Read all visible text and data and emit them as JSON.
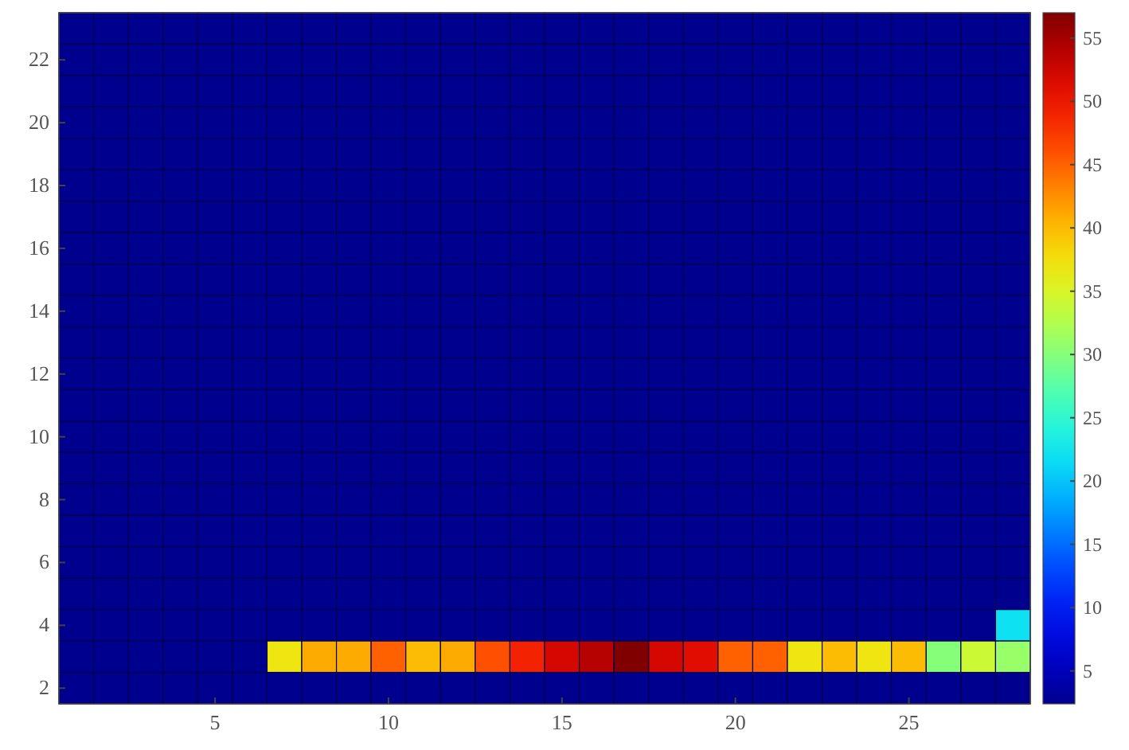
{
  "chart_data": {
    "type": "heatmap",
    "categories": [
      null,
      null,
      null,
      null,
      "5",
      null,
      null,
      null,
      null,
      "10",
      null,
      null,
      null,
      null,
      "15",
      null,
      null,
      null,
      null,
      "20",
      null,
      null,
      null,
      null,
      "25",
      null,
      null,
      null
    ],
    "y_categories": [
      null,
      "22",
      null,
      "20",
      null,
      "18",
      null,
      "16",
      null,
      "14",
      null,
      "12",
      null,
      "10",
      null,
      "8",
      null,
      "6",
      null,
      "4",
      null,
      "2"
    ],
    "cells": [
      [
        2.4,
        2.4,
        2.4,
        2.4,
        2.4,
        2.4,
        2.4,
        2.4,
        2.4,
        2.4,
        2.4,
        2.4,
        2.4,
        2.4,
        2.4,
        2.4,
        2.4,
        2.4,
        2.4,
        2.4,
        2.4,
        2.4,
        2.4,
        2.4,
        2.4,
        2.4,
        2.4,
        2.4
      ],
      [
        2.4,
        2.4,
        2.4,
        2.4,
        2.4,
        2.4,
        2.4,
        2.4,
        2.4,
        2.4,
        2.4,
        2.4,
        2.4,
        2.4,
        2.4,
        2.4,
        2.4,
        2.4,
        2.4,
        2.4,
        2.4,
        2.4,
        2.4,
        2.4,
        2.4,
        2.4,
        2.4,
        2.4
      ],
      [
        2.4,
        2.4,
        2.4,
        2.4,
        2.4,
        2.4,
        2.4,
        2.4,
        2.4,
        2.4,
        2.4,
        2.4,
        2.4,
        2.4,
        2.4,
        2.4,
        2.4,
        2.4,
        2.4,
        2.4,
        2.4,
        2.4,
        2.4,
        2.4,
        2.4,
        2.4,
        2.4,
        2.4
      ],
      [
        2.4,
        2.4,
        2.4,
        2.4,
        2.4,
        2.4,
        2.4,
        2.4,
        2.4,
        2.4,
        2.4,
        2.4,
        2.4,
        2.4,
        2.4,
        2.4,
        2.4,
        2.4,
        2.4,
        2.4,
        2.4,
        2.4,
        2.4,
        2.4,
        2.4,
        2.4,
        2.4,
        2.4
      ],
      [
        2.4,
        2.4,
        2.4,
        2.4,
        2.4,
        2.4,
        2.4,
        2.4,
        2.4,
        2.4,
        2.4,
        2.4,
        2.4,
        2.4,
        2.4,
        2.4,
        2.4,
        2.4,
        2.4,
        2.4,
        2.4,
        2.4,
        2.4,
        2.4,
        2.4,
        2.4,
        2.4,
        2.4
      ],
      [
        2.4,
        2.4,
        2.4,
        2.4,
        2.4,
        2.4,
        2.4,
        2.4,
        2.4,
        2.4,
        2.4,
        2.4,
        2.4,
        2.4,
        2.4,
        2.4,
        2.4,
        2.4,
        2.4,
        2.4,
        2.4,
        2.4,
        2.4,
        2.4,
        2.4,
        2.4,
        2.4,
        2.4
      ],
      [
        2.4,
        2.4,
        2.4,
        2.4,
        2.4,
        2.4,
        2.4,
        2.4,
        2.4,
        2.4,
        2.4,
        2.4,
        2.4,
        2.4,
        2.4,
        2.4,
        2.4,
        2.4,
        2.4,
        2.4,
        2.4,
        2.4,
        2.4,
        2.4,
        2.4,
        2.4,
        2.4,
        2.4
      ],
      [
        2.4,
        2.4,
        2.4,
        2.4,
        2.4,
        2.4,
        2.4,
        2.4,
        2.4,
        2.4,
        2.4,
        2.4,
        2.4,
        2.4,
        2.4,
        2.4,
        2.4,
        2.4,
        2.4,
        2.4,
        2.4,
        2.4,
        2.4,
        2.4,
        2.4,
        2.4,
        2.4,
        2.4
      ],
      [
        2.4,
        2.4,
        2.4,
        2.4,
        2.4,
        2.4,
        2.4,
        2.4,
        2.4,
        2.4,
        2.4,
        2.4,
        2.4,
        2.4,
        2.4,
        2.4,
        2.4,
        2.4,
        2.4,
        2.4,
        2.4,
        2.4,
        2.4,
        2.4,
        2.4,
        2.4,
        2.4,
        2.4
      ],
      [
        2.4,
        2.4,
        2.4,
        2.4,
        2.4,
        2.4,
        2.4,
        2.4,
        2.4,
        2.4,
        2.4,
        2.4,
        2.4,
        2.4,
        2.4,
        2.4,
        2.4,
        2.4,
        2.4,
        2.4,
        2.4,
        2.4,
        2.4,
        2.4,
        2.4,
        2.4,
        2.4,
        2.4
      ],
      [
        2.4,
        2.4,
        2.4,
        2.4,
        2.4,
        2.4,
        2.4,
        2.4,
        2.4,
        2.4,
        2.4,
        2.4,
        2.4,
        2.4,
        2.4,
        2.4,
        2.4,
        2.4,
        2.4,
        2.4,
        2.4,
        2.4,
        2.4,
        2.4,
        2.4,
        2.4,
        2.4,
        2.4
      ],
      [
        2.4,
        2.4,
        2.4,
        2.4,
        2.4,
        2.4,
        2.4,
        2.4,
        2.4,
        2.4,
        2.4,
        2.4,
        2.4,
        2.4,
        2.4,
        2.4,
        2.4,
        2.4,
        2.4,
        2.4,
        2.4,
        2.4,
        2.4,
        2.4,
        2.4,
        2.4,
        2.4,
        2.4
      ],
      [
        2.4,
        2.4,
        2.4,
        2.4,
        2.4,
        2.4,
        2.4,
        2.4,
        2.4,
        2.4,
        2.4,
        2.4,
        2.4,
        2.4,
        2.4,
        2.4,
        2.4,
        2.4,
        2.4,
        2.4,
        2.4,
        2.4,
        2.4,
        2.4,
        2.4,
        2.4,
        2.4,
        2.4
      ],
      [
        2.4,
        2.4,
        2.4,
        2.4,
        2.4,
        2.4,
        2.4,
        2.4,
        2.4,
        2.4,
        2.4,
        2.4,
        2.4,
        2.4,
        2.4,
        2.4,
        2.4,
        2.4,
        2.4,
        2.4,
        2.4,
        2.4,
        2.4,
        2.4,
        2.4,
        2.4,
        2.4,
        2.4
      ],
      [
        2.4,
        2.4,
        2.4,
        2.4,
        2.4,
        2.4,
        2.4,
        2.4,
        2.4,
        2.4,
        2.4,
        2.4,
        2.4,
        2.4,
        2.4,
        2.4,
        2.4,
        2.4,
        2.4,
        2.4,
        2.4,
        2.4,
        2.4,
        2.4,
        2.4,
        2.4,
        2.4,
        2.4
      ],
      [
        2.4,
        2.4,
        2.4,
        2.4,
        2.4,
        2.4,
        2.4,
        2.4,
        2.4,
        2.4,
        2.4,
        2.4,
        2.4,
        2.4,
        2.4,
        2.4,
        2.4,
        2.4,
        2.4,
        2.4,
        2.4,
        2.4,
        2.4,
        2.4,
        2.4,
        2.4,
        2.4,
        2.4
      ],
      [
        2.4,
        2.4,
        2.4,
        2.4,
        2.4,
        2.4,
        2.4,
        2.4,
        2.4,
        2.4,
        2.4,
        2.4,
        2.4,
        2.4,
        2.4,
        2.4,
        2.4,
        2.4,
        2.4,
        2.4,
        2.4,
        2.4,
        2.4,
        2.4,
        2.4,
        2.4,
        2.4,
        2.4
      ],
      [
        2.4,
        2.4,
        2.4,
        2.4,
        2.4,
        2.4,
        2.4,
        2.4,
        2.4,
        2.4,
        2.4,
        2.4,
        2.4,
        2.4,
        2.4,
        2.4,
        2.4,
        2.4,
        2.4,
        2.4,
        2.4,
        2.4,
        2.4,
        2.4,
        2.4,
        2.4,
        2.4,
        2.4
      ],
      [
        2.4,
        2.4,
        2.4,
        2.4,
        2.4,
        2.4,
        2.4,
        2.4,
        2.4,
        2.4,
        2.4,
        2.4,
        2.4,
        2.4,
        2.4,
        2.4,
        2.4,
        2.4,
        2.4,
        2.4,
        2.4,
        2.4,
        2.4,
        2.4,
        2.4,
        2.4,
        2.4,
        2.4
      ],
      [
        2.4,
        2.4,
        2.4,
        2.4,
        2.4,
        2.4,
        2.4,
        2.4,
        2.4,
        2.4,
        2.4,
        2.4,
        2.4,
        2.4,
        2.4,
        2.4,
        2.4,
        2.4,
        2.4,
        2.4,
        2.4,
        2.4,
        2.4,
        2.4,
        2.4,
        2.4,
        2.4,
        22
      ],
      [
        2.4,
        2.4,
        2.4,
        2.4,
        2.4,
        2.4,
        37,
        41,
        41,
        45,
        40,
        41,
        46,
        49,
        52,
        54,
        57,
        52,
        51,
        45,
        45,
        37,
        40,
        37,
        40,
        30,
        34,
        31
      ],
      [
        2.4,
        2.4,
        2.4,
        2.4,
        2.4,
        2.4,
        2.4,
        2.4,
        2.4,
        2.4,
        2.4,
        2.4,
        2.4,
        2.4,
        2.4,
        2.4,
        2.4,
        2.4,
        2.4,
        2.4,
        2.4,
        2.4,
        2.4,
        2.4,
        2.4,
        2.4,
        2.4,
        2.4
      ]
    ],
    "clim": [
      2.4,
      57
    ],
    "cticks": [
      5,
      10,
      15,
      20,
      25,
      30,
      35,
      40,
      45,
      50,
      55
    ]
  }
}
